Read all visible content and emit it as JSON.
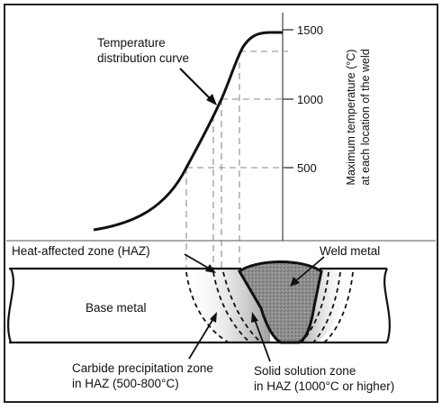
{
  "figure": {
    "labels": {
      "curve_label_line1": "Temperature",
      "curve_label_line2": "distribution curve",
      "haz": "Heat-affected zone (HAZ)",
      "weld_metal": "Weld metal",
      "base_metal": "Base metal",
      "carbide_line1": "Carbide precipitation zone",
      "carbide_line2": "in HAZ (500-800°C)",
      "solid_line1": "Solid solution zone",
      "solid_line2": "in HAZ (1000°C or higher)"
    },
    "axis": {
      "title_line1": "Maximum temperature (°C)",
      "title_line2": "at each location of the weld",
      "ticks": [
        "1500",
        "1000",
        "500"
      ]
    },
    "colors": {
      "line": "#111111",
      "dash": "#8a8a8a",
      "weld_fill": "#8c8c8c",
      "haz_shade": "#9a9a9a",
      "background": "#ffffff"
    }
  }
}
